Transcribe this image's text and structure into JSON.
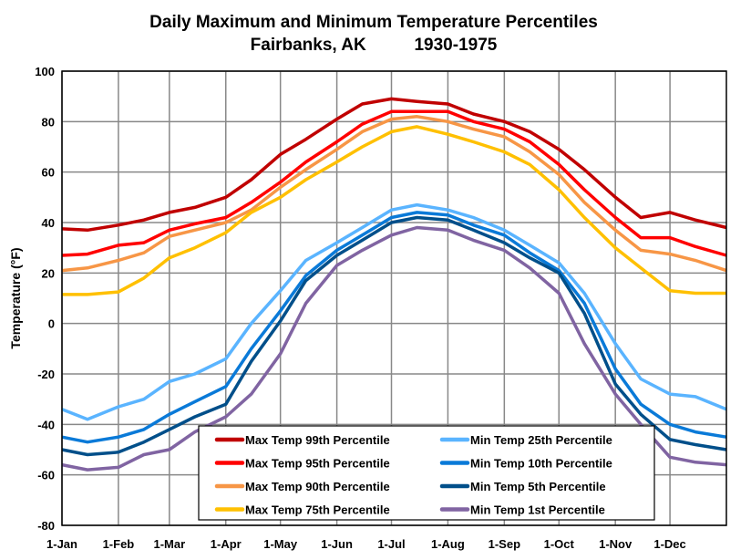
{
  "chart_data": {
    "type": "line",
    "title": "Daily Maximum and Minimum Temperature Percentiles",
    "subtitle": "Fairbanks, AK          1930-1975",
    "xlabel": "",
    "ylabel": "Temperature (°F)",
    "ylim": [
      -80,
      100
    ],
    "yticks": [
      -80,
      -60,
      -40,
      -20,
      0,
      20,
      40,
      60,
      80,
      100
    ],
    "xticks": [
      "1-Jan",
      "1-Feb",
      "1-Mar",
      "1-Apr",
      "1-May",
      "1-Jun",
      "1-Jul",
      "1-Aug",
      "1-Sep",
      "1-Oct",
      "1-Nov",
      "1-Dec"
    ],
    "grid": true,
    "legend": "bottom-center",
    "x": [
      "1-Jan",
      "15-Jan",
      "1-Feb",
      "15-Feb",
      "1-Mar",
      "15-Mar",
      "1-Apr",
      "15-Apr",
      "1-May",
      "15-May",
      "1-Jun",
      "15-Jun",
      "1-Jul",
      "15-Jul",
      "1-Aug",
      "15-Aug",
      "1-Sep",
      "15-Sep",
      "1-Oct",
      "15-Oct",
      "1-Nov",
      "15-Nov",
      "1-Dec",
      "15-Dec",
      "31-Dec"
    ],
    "series": [
      {
        "name": "Max Temp 99th Percentile",
        "color": "#c00000",
        "values": [
          37.5,
          37,
          39,
          41,
          44,
          46,
          50,
          57,
          67,
          73,
          81,
          87,
          89,
          88,
          87,
          83,
          80,
          76,
          69,
          61,
          50,
          42,
          44,
          41,
          38
        ]
      },
      {
        "name": "Max Temp 95th Percentile",
        "color": "#ff0000",
        "values": [
          27,
          27.5,
          31,
          32,
          37,
          39.5,
          42,
          48,
          56,
          64,
          72,
          79,
          84,
          84,
          84,
          80,
          77,
          72,
          63,
          53,
          42,
          34,
          34,
          30.5,
          27
        ]
      },
      {
        "name": "Max Temp 90th Percentile",
        "color": "#f79646",
        "values": [
          21,
          22,
          25,
          28,
          34.5,
          37,
          40,
          45,
          54,
          61,
          69,
          76,
          81,
          82,
          80,
          77,
          74,
          68,
          59,
          48,
          37,
          29,
          27.5,
          25,
          21
        ]
      },
      {
        "name": "Max Temp 75th Percentile",
        "color": "#ffc000",
        "values": [
          11.5,
          11.5,
          12.5,
          18,
          26,
          30,
          36,
          44,
          50,
          57,
          64,
          70,
          76,
          78,
          75,
          72,
          68,
          63,
          53,
          42,
          30,
          22,
          13,
          12,
          12
        ]
      },
      {
        "name": "Min Temp 25th Percentile",
        "color": "#5ab4ff",
        "values": [
          -34,
          -38,
          -33,
          -30,
          -23,
          -20,
          -14,
          0,
          13,
          25,
          32,
          38,
          45,
          47,
          45,
          42,
          37,
          31,
          24,
          12,
          -8,
          -22,
          -28,
          -29,
          -34
        ]
      },
      {
        "name": "Min Temp 10th Percentile",
        "color": "#0a7ad8",
        "values": [
          -45,
          -47,
          -45,
          -42,
          -36,
          -31,
          -25,
          -10,
          5,
          19,
          29,
          35,
          42,
          44,
          43,
          39,
          35,
          28,
          21,
          8,
          -18,
          -32,
          -40,
          -43,
          -45
        ]
      },
      {
        "name": "Min Temp 5th Percentile",
        "color": "#004f8a",
        "values": [
          -50,
          -52,
          -51,
          -47,
          -42,
          -37,
          -32,
          -15,
          1,
          17,
          27,
          33,
          40,
          42,
          41,
          37,
          32,
          26,
          20,
          4,
          -24,
          -36,
          -46,
          -48,
          -50
        ]
      },
      {
        "name": "Min Temp 1st Percentile",
        "color": "#8064a2",
        "values": [
          -56,
          -58,
          -57,
          -52,
          -50,
          -43,
          -37,
          -28,
          -12,
          8,
          23,
          29,
          35,
          38,
          37,
          33,
          29,
          22,
          12,
          -8,
          -28,
          -40,
          -53,
          -55,
          -56
        ]
      }
    ]
  }
}
